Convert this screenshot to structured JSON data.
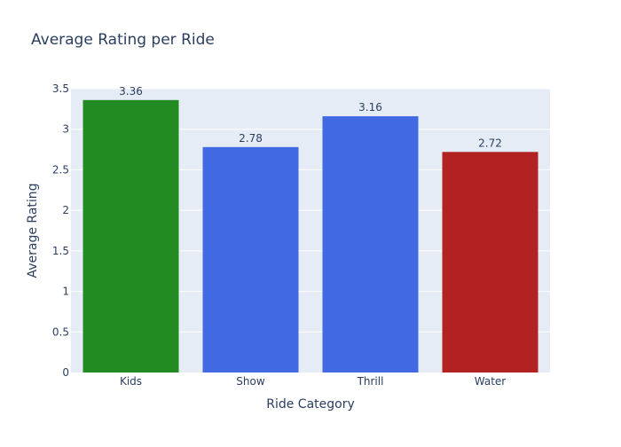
{
  "chart_data": {
    "type": "bar",
    "title": "Average Rating per Ride",
    "xlabel": "Ride Category",
    "ylabel": "Average Rating",
    "categories": [
      "Kids",
      "Show",
      "Thrill",
      "Water"
    ],
    "values": [
      3.36,
      2.78,
      3.16,
      2.72
    ],
    "data_labels": [
      "3.36",
      "2.78",
      "3.16",
      "2.72"
    ],
    "bar_colors": [
      "#228B22",
      "#4169E1",
      "#4169E1",
      "#B22222"
    ],
    "ylim": [
      0,
      3.5
    ],
    "yticks": [
      0,
      0.5,
      1,
      1.5,
      2,
      2.5,
      3,
      3.5
    ],
    "ytick_labels": [
      "0",
      "0.5",
      "1",
      "1.5",
      "2",
      "2.5",
      "3",
      "3.5"
    ],
    "grid": true,
    "legend": "none"
  },
  "colors": {
    "plot_background": "#E5ECF6",
    "grid": "#FFFFFF",
    "text": "#2A3F5F",
    "page_background": "#FFFFFF"
  }
}
